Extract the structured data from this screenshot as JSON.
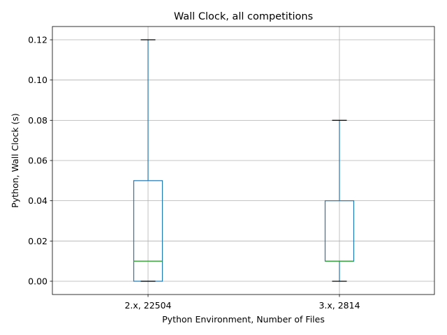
{
  "chart_data": {
    "type": "box",
    "title": "Wall Clock, all competitions",
    "xlabel": "Python Environment, Number of Files",
    "ylabel": "Python, Wall Clock (s)",
    "ylim": [
      -0.0066,
      0.1266
    ],
    "yticks": [
      0.0,
      0.02,
      0.04,
      0.06,
      0.08,
      0.1,
      0.12
    ],
    "ytick_labels": [
      "0.00",
      "0.02",
      "0.04",
      "0.06",
      "0.08",
      "0.10",
      "0.12"
    ],
    "grid": true,
    "categories": [
      "2.x, 22504",
      "3.x, 2814"
    ],
    "boxes": [
      {
        "whisker_low": 0.0,
        "q1": 0.0,
        "median": 0.01,
        "q3": 0.05,
        "whisker_high": 0.12
      },
      {
        "whisker_low": 0.0,
        "q1": 0.01,
        "median": 0.01,
        "q3": 0.04,
        "whisker_high": 0.08
      }
    ],
    "colors": {
      "box": "#1f77b4",
      "median": "#2ca02c",
      "cap": "#000000",
      "grid": "#b0b0b0"
    }
  }
}
